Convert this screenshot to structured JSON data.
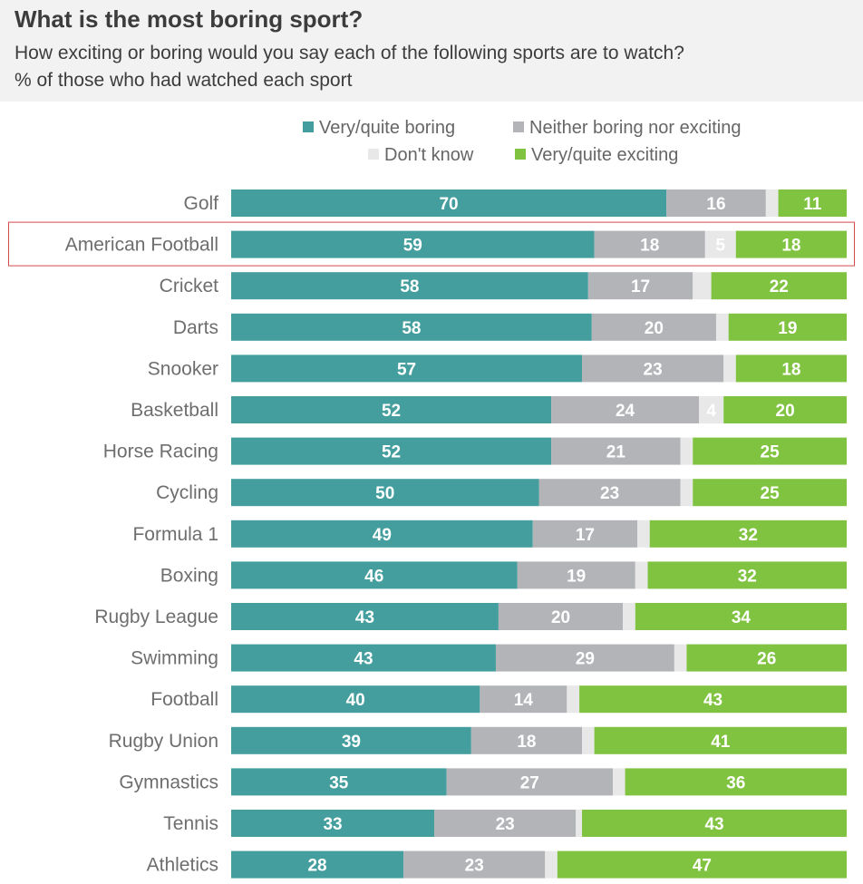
{
  "header": {
    "title": "What is the most boring sport?",
    "subtitle": "How exciting or boring would you say each of the following sports are to watch?",
    "subtitle2": "% of those who had watched each sport"
  },
  "chart_data": {
    "type": "bar",
    "orientation": "horizontal",
    "stacked": true,
    "categories": [
      "Golf",
      "American Football",
      "Cricket",
      "Darts",
      "Snooker",
      "Basketball",
      "Horse Racing",
      "Cycling",
      "Formula 1",
      "Boxing",
      "Rugby League",
      "Swimming",
      "Football",
      "Rugby Union",
      "Gymnastics",
      "Tennis",
      "Athletics"
    ],
    "series": [
      {
        "name": "Very/quite boring",
        "color": "#449e9e",
        "values": [
          70,
          59,
          58,
          58,
          57,
          52,
          52,
          50,
          49,
          46,
          43,
          43,
          40,
          39,
          35,
          33,
          28
        ]
      },
      {
        "name": "Neither boring nor exciting",
        "color": "#b2b4b8",
        "values": [
          16,
          18,
          17,
          20,
          23,
          24,
          21,
          23,
          17,
          19,
          20,
          29,
          14,
          18,
          27,
          23,
          23
        ]
      },
      {
        "name": "Don't know",
        "color": "#e8e8e8",
        "values": [
          2,
          5,
          3,
          2,
          2,
          4,
          2,
          2,
          2,
          2,
          2,
          2,
          2,
          2,
          2,
          1,
          2
        ]
      },
      {
        "name": "Very/quite exciting",
        "color": "#80c341",
        "values": [
          11,
          18,
          22,
          19,
          18,
          20,
          25,
          25,
          32,
          32,
          34,
          26,
          43,
          41,
          36,
          43,
          47
        ]
      }
    ],
    "value_labels_shown": [
      [
        true,
        true,
        true,
        true,
        true,
        true,
        true,
        true,
        true,
        true,
        true,
        true,
        true,
        true,
        true,
        true,
        true
      ],
      [
        true,
        true,
        true,
        true,
        true,
        true,
        true,
        true,
        true,
        true,
        true,
        true,
        true,
        true,
        true,
        true,
        true
      ],
      [
        false,
        true,
        false,
        false,
        false,
        true,
        false,
        false,
        false,
        false,
        false,
        false,
        false,
        false,
        false,
        false,
        false
      ],
      [
        true,
        true,
        true,
        true,
        true,
        true,
        true,
        true,
        true,
        true,
        true,
        true,
        true,
        true,
        true,
        true,
        true
      ]
    ],
    "highlighted_category": "American Football",
    "legend_position": "top-right",
    "xlim": [
      0,
      100
    ],
    "grid": false
  }
}
